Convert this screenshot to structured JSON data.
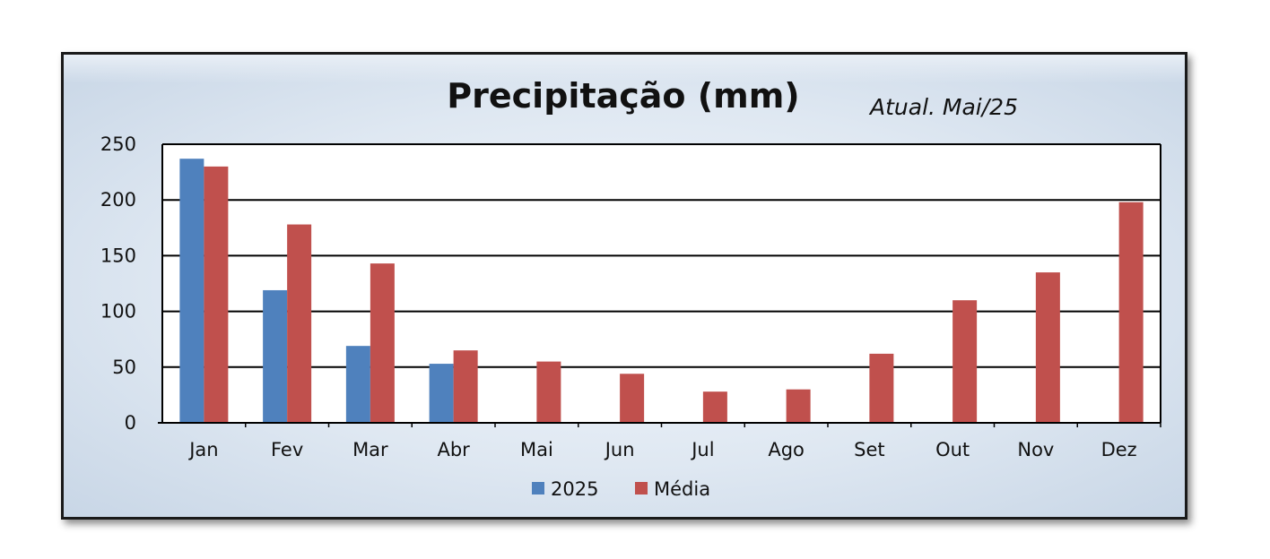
{
  "chart_data": {
    "type": "bar",
    "title": "Precipitação (mm)",
    "annotation": "Atual. Mai/25",
    "categories": [
      "Jan",
      "Fev",
      "Mar",
      "Abr",
      "Mai",
      "Jun",
      "Jul",
      "Ago",
      "Set",
      "Out",
      "Nov",
      "Dez"
    ],
    "series": [
      {
        "name": "2025",
        "color": "#4f81bd",
        "values": [
          237,
          119,
          69,
          53,
          null,
          null,
          null,
          null,
          null,
          null,
          null,
          null
        ]
      },
      {
        "name": "Média",
        "color": "#c0504d",
        "values": [
          230,
          178,
          143,
          65,
          55,
          44,
          28,
          30,
          62,
          110,
          135,
          198
        ]
      }
    ],
    "ylim": [
      0,
      250
    ],
    "yticks": [
      0,
      50,
      100,
      150,
      200,
      250
    ],
    "grid": true,
    "legend": "bottom"
  }
}
